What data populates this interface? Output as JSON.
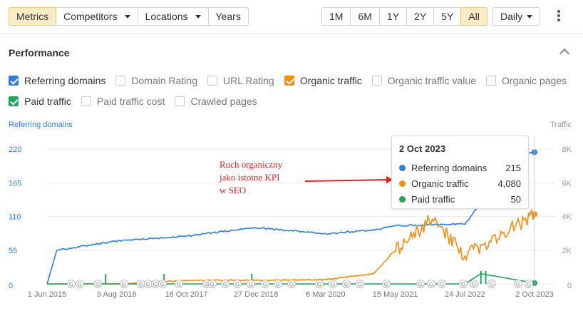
{
  "toolbar": {
    "tabs": [
      {
        "label": "Metrics",
        "active": true
      },
      {
        "label": "Competitors",
        "dropdown": true
      },
      {
        "label": "Locations",
        "dropdown": true
      },
      {
        "label": "Years"
      }
    ],
    "ranges": [
      "1M",
      "6M",
      "1Y",
      "2Y",
      "5Y",
      "All"
    ],
    "active_range": "All",
    "interval": "Daily"
  },
  "section": {
    "title": "Performance"
  },
  "metrics_row1": [
    {
      "label": "Referring domains",
      "checked": true,
      "color": "#2f7ed8"
    },
    {
      "label": "Domain Rating",
      "checked": false
    },
    {
      "label": "URL Rating",
      "checked": false
    },
    {
      "label": "Organic traffic",
      "checked": true,
      "color": "#f28d17"
    },
    {
      "label": "Organic traffic value",
      "checked": false
    },
    {
      "label": "Organic pages",
      "checked": false
    }
  ],
  "metrics_row2": [
    {
      "label": "Paid traffic",
      "checked": true,
      "color": "#24a35a"
    },
    {
      "label": "Paid traffic cost",
      "checked": false
    },
    {
      "label": "Crawled pages",
      "checked": false
    }
  ],
  "chart_data": {
    "type": "line",
    "left_axis_title": "Referring domains",
    "right_axis_title": "Traffic",
    "left_ticks": [
      "0",
      "55",
      "110",
      "165",
      "220"
    ],
    "right_ticks": [
      "0",
      "2K",
      "4K",
      "6K",
      "8K"
    ],
    "x_ticks": [
      "1 Jun 2015",
      "9 Aug 2016",
      "18 Oct 2017",
      "27 Dec 2018",
      "6 Mar 2020",
      "15 May 2021",
      "24 Jul 2022",
      "2 Oct 2023"
    ],
    "ylim_left": [
      0,
      240
    ],
    "ylim_right": [
      0,
      8600
    ],
    "series": [
      {
        "name": "Referring domains",
        "axis": "left",
        "color": "#2f7ed8",
        "x": [
          "1 Jun 2015",
          "1 Aug 2015",
          "9 Aug 2016",
          "18 Oct 2017",
          "27 Dec 2018",
          "6 Mar 2020",
          "1 Jan 2021",
          "15 May 2021",
          "24 Jul 2022",
          "1 Jul 2023",
          "2 Oct 2023"
        ],
        "values": [
          0,
          55,
          70,
          78,
          92,
          82,
          88,
          95,
          98,
          215,
          215
        ]
      },
      {
        "name": "Organic traffic",
        "axis": "right",
        "color": "#f28d17",
        "x": [
          "1 Jun 2015",
          "9 Aug 2016",
          "18 Oct 2017",
          "27 Dec 2018",
          "6 Mar 2020",
          "1 Jan 2021",
          "15 May 2021",
          "1 Jan 2022",
          "24 Jul 2022",
          "1 Jul 2023",
          "2 Oct 2023"
        ],
        "values": [
          0,
          0,
          200,
          220,
          250,
          600,
          2000,
          3800,
          1700,
          3500,
          4080
        ]
      },
      {
        "name": "Paid traffic",
        "axis": "right",
        "color": "#24a35a",
        "x": [
          "1 Jun 2015",
          "24 Jul 2022",
          "1 Nov 2022",
          "2 Oct 2023"
        ],
        "values": [
          0,
          0,
          600,
          50
        ]
      }
    ],
    "annotation_markers": "G"
  },
  "tooltip": {
    "date": "2 Oct 2023",
    "rows": [
      {
        "name": "Referring domains",
        "value": "215",
        "color": "#2f7ed8"
      },
      {
        "name": "Organic traffic",
        "value": "4,080",
        "color": "#f28d17"
      },
      {
        "name": "Paid traffic",
        "value": "50",
        "color": "#24a35a"
      }
    ]
  },
  "annotation": {
    "lines": [
      "Ruch organiczny",
      "jako istotne KPI",
      "w SEO"
    ]
  }
}
